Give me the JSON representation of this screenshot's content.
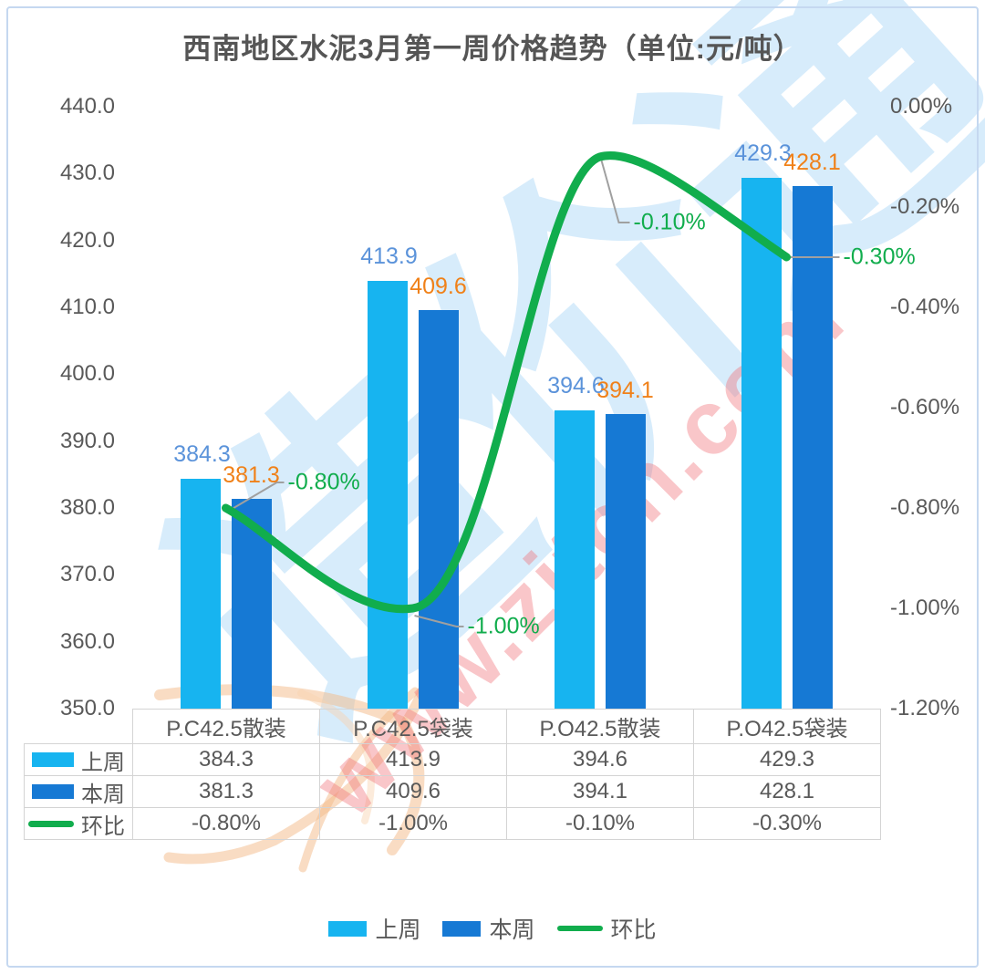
{
  "title": "西南地区水泥3月第一周价格趋势（单位:元/吨）",
  "chart_data": {
    "type": "bar+line",
    "categories": [
      "P.C42.5散装",
      "P.C42.5袋装",
      "P.O42.5散装",
      "P.O42.5袋装"
    ],
    "series": [
      {
        "name": "上周",
        "type": "bar",
        "color": "#17b4f0",
        "label_color": "#5b93da",
        "values": [
          "384.3",
          "413.9",
          "394.6",
          "429.3"
        ]
      },
      {
        "name": "本周",
        "type": "bar",
        "color": "#1679d4",
        "label_color": "#f08119",
        "values": [
          "381.3",
          "409.6",
          "394.1",
          "428.1"
        ]
      },
      {
        "name": "环比",
        "type": "line",
        "color": "#11ad4d",
        "values": [
          "-0.80%",
          "-1.00%",
          "-0.10%",
          "-0.30%"
        ]
      }
    ],
    "left_axis": {
      "ticks": [
        "440.0",
        "430.0",
        "420.0",
        "410.0",
        "400.0",
        "390.0",
        "380.0",
        "370.0",
        "360.0",
        "350.0"
      ],
      "min": 350,
      "max": 440
    },
    "right_axis": {
      "ticks": [
        "0.00%",
        "-0.20%",
        "-0.40%",
        "-0.60%",
        "-0.80%",
        "-1.00%",
        "-1.20%"
      ],
      "min": -1.2,
      "max": 0
    },
    "grid": false,
    "legend_position": "bottom",
    "data_table": true
  },
  "watermarks": {
    "url_text": "www.zjtcn.com",
    "logo_text": "造价通"
  },
  "colors": {
    "frame_border": "#c5d8f0",
    "axis_text": "#595959",
    "table_border": "#d4d4d4",
    "leader_line": "#a0a0a0",
    "watermark_pink": "rgba(241,112,119,0.40)",
    "watermark_blue": "rgba(183,220,247,0.55)",
    "watermark_orange": "rgba(244,186,135,0.50)"
  }
}
